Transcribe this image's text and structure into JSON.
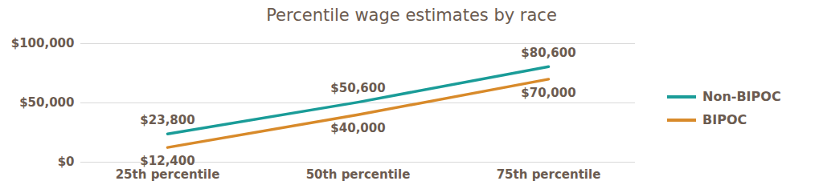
{
  "chart_data": {
    "type": "line",
    "title": "Percentile wage estimates by race",
    "categories": [
      "25th percentile",
      "50th percentile",
      "75th percentile"
    ],
    "series": [
      {
        "name": "Non-BIPOC",
        "color": "#1a9c98",
        "values": [
          23800,
          50600,
          80600
        ],
        "value_labels": [
          "$23,800",
          "$50,600",
          "$80,600"
        ],
        "line_style": "solid"
      },
      {
        "name": "BIPOC",
        "color": "#d88a2a",
        "values": [
          12400,
          40000,
          70000
        ],
        "value_labels": [
          "$12,400",
          "$40,000",
          "$70,000"
        ],
        "line_style": "solid"
      }
    ],
    "ylim": [
      0,
      100000
    ],
    "yticks": [
      {
        "value": 0,
        "label": "$0"
      },
      {
        "value": 50000,
        "label": "$50,000"
      },
      {
        "value": 100000,
        "label": "$100,000"
      }
    ],
    "grid": true,
    "legend": "right",
    "data_labels": true
  }
}
